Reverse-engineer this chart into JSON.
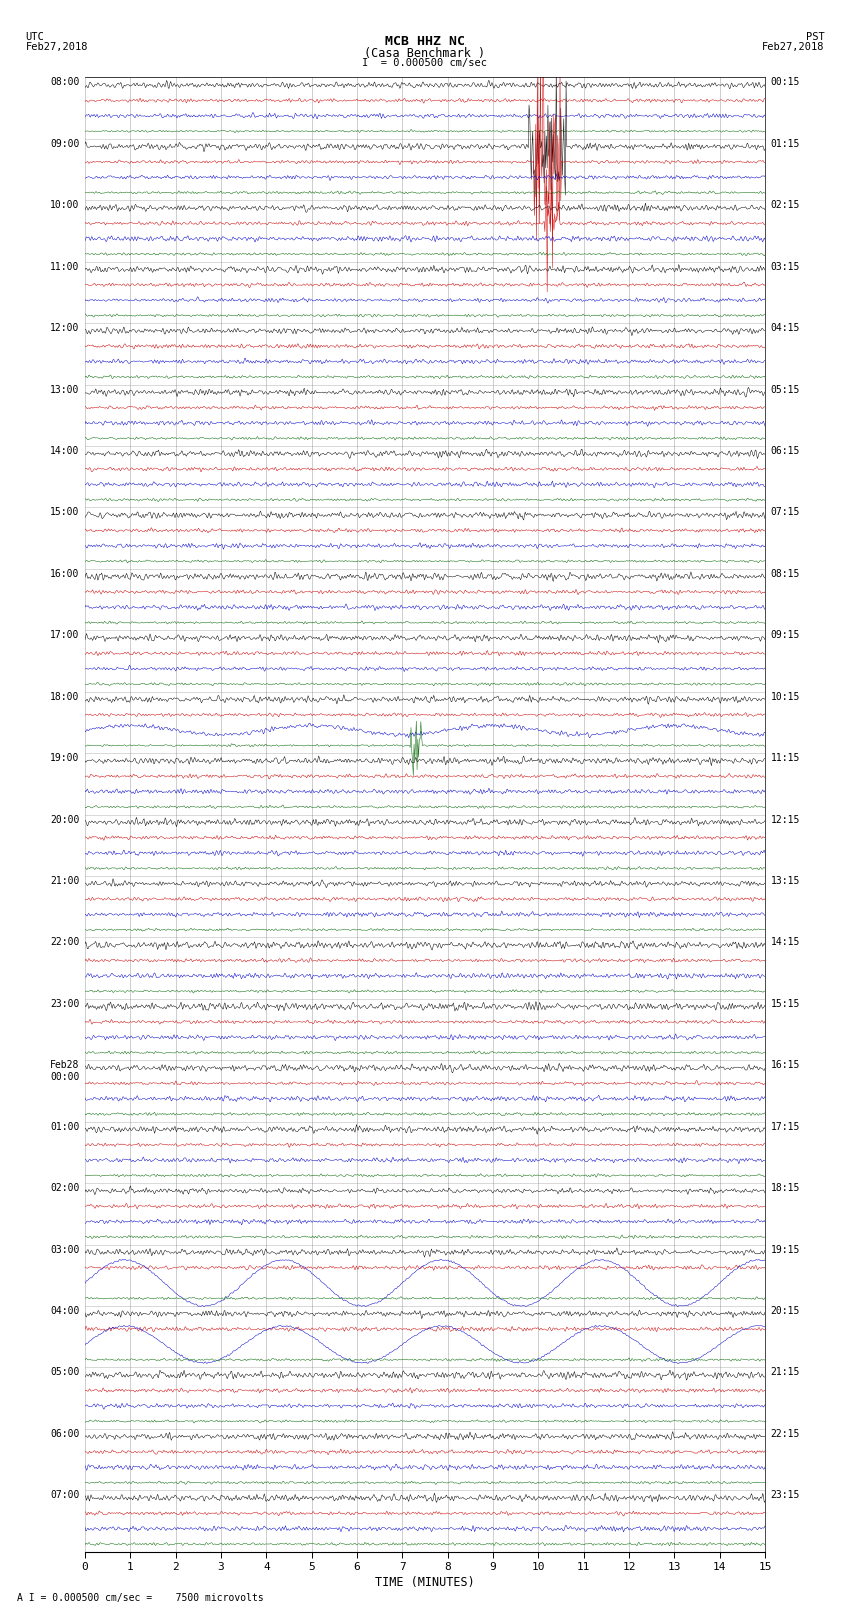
{
  "title_line1": "MCB HHZ NC",
  "title_line2": "(Casa Benchmark )",
  "scale_label": "I  = 0.000500 cm/sec",
  "bottom_label": "A I = 0.000500 cm/sec =    7500 microvolts",
  "xlabel": "TIME (MINUTES)",
  "left_header": "UTC\nFeb27,2018",
  "right_header": "PST\nFeb27,2018",
  "bg_color": "#ffffff",
  "trace_colors": [
    "#000000",
    "#cc0000",
    "#0000cc",
    "#006600"
  ],
  "grid_color": "#777777",
  "figsize": [
    8.5,
    16.13
  ],
  "dpi": 100,
  "minutes": 15,
  "n_hours": 24,
  "traces_per_hour": 4,
  "left_times": [
    "08:00",
    "09:00",
    "10:00",
    "11:00",
    "12:00",
    "13:00",
    "14:00",
    "15:00",
    "16:00",
    "17:00",
    "18:00",
    "19:00",
    "20:00",
    "21:00",
    "22:00",
    "23:00",
    "Feb28\n00:00",
    "01:00",
    "02:00",
    "03:00",
    "04:00",
    "05:00",
    "06:00",
    "07:00"
  ],
  "right_times": [
    "00:15",
    "01:15",
    "02:15",
    "03:15",
    "04:15",
    "05:15",
    "06:15",
    "07:15",
    "08:15",
    "09:15",
    "10:15",
    "11:15",
    "12:15",
    "13:15",
    "14:15",
    "15:15",
    "16:15",
    "17:15",
    "18:15",
    "19:15",
    "20:15",
    "21:15",
    "22:15",
    "23:15"
  ]
}
